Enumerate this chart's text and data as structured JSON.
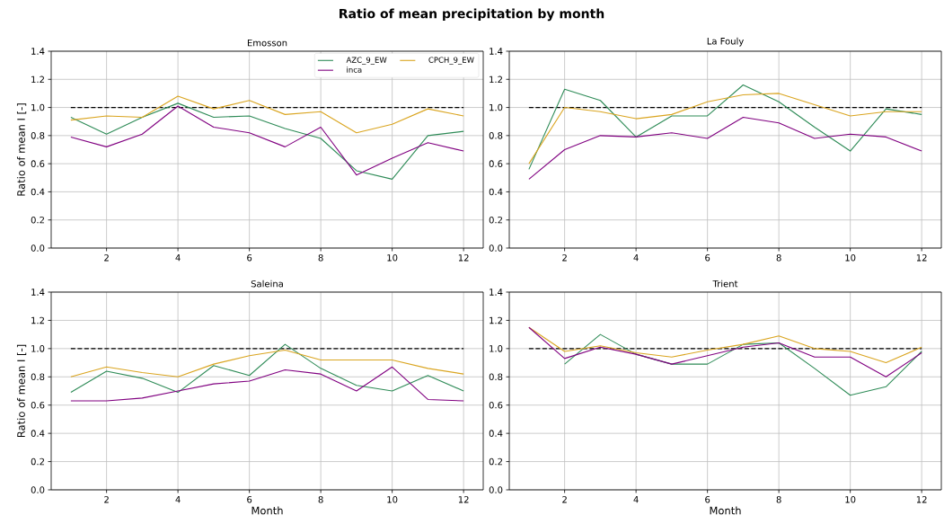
{
  "chart_data": [
    {
      "type": "line",
      "title": "Emosson",
      "ylabel": "Ratio of mean I [-]",
      "annotations": [
        "Ratio of mean precipitation by month"
      ],
      "x": [
        1,
        2,
        3,
        4,
        5,
        6,
        7,
        8,
        9,
        10,
        11,
        12
      ],
      "xlim": [
        0.45,
        12.55
      ],
      "ylim": [
        0,
        1.4
      ],
      "xticks": [
        2,
        4,
        6,
        8,
        10,
        12
      ],
      "yticks": [
        {
          "value": 0,
          "label": "0.0"
        },
        {
          "value": 0.2,
          "label": "0.2"
        },
        {
          "value": 0.4,
          "label": "0.4"
        },
        {
          "value": 0.6,
          "label": "0.6"
        },
        {
          "value": 0.8,
          "label": "0.8"
        },
        {
          "value": 1.0,
          "label": "1.0"
        },
        {
          "value": 1.2,
          "label": "1.2"
        },
        {
          "value": 1.4,
          "label": "1.4"
        }
      ],
      "grid": true,
      "legend": "top right",
      "ref_lines": [
        {
          "axis": "y",
          "value": 1.0,
          "color": "#000000",
          "line_style": "dashed"
        }
      ],
      "series": [
        {
          "name": "AZC_9_EW",
          "color": "#2e8b57",
          "values": [
            0.93,
            0.81,
            0.93,
            1.03,
            0.93,
            0.94,
            0.85,
            0.78,
            0.55,
            0.49,
            0.8,
            0.83
          ]
        },
        {
          "name": "CPCH_9_EW",
          "color": "#daa520",
          "values": [
            0.91,
            0.94,
            0.93,
            1.08,
            0.99,
            1.05,
            0.95,
            0.97,
            0.82,
            0.88,
            0.99,
            0.94
          ]
        },
        {
          "name": "inca",
          "color": "#800080",
          "values": [
            0.79,
            0.72,
            0.81,
            1.01,
            0.86,
            0.82,
            0.72,
            0.86,
            0.52,
            0.64,
            0.75,
            0.69
          ]
        }
      ]
    },
    {
      "type": "line",
      "title": "La Fouly",
      "x": [
        1,
        2,
        3,
        4,
        5,
        6,
        7,
        8,
        9,
        10,
        11,
        12
      ],
      "xlim": [
        0.45,
        12.55
      ],
      "ylim": [
        0,
        1.4
      ],
      "xticks": [
        2,
        4,
        6,
        8,
        10,
        12
      ],
      "yticks": [
        {
          "value": 0,
          "label": "0.0"
        },
        {
          "value": 0.2,
          "label": "0.2"
        },
        {
          "value": 0.4,
          "label": "0.4"
        },
        {
          "value": 0.6,
          "label": "0.6"
        },
        {
          "value": 0.8,
          "label": "0.8"
        },
        {
          "value": 1.0,
          "label": "1.0"
        },
        {
          "value": 1.2,
          "label": "1.2"
        },
        {
          "value": 1.4,
          "label": "1.4"
        }
      ],
      "grid": true,
      "ref_lines": [
        {
          "axis": "y",
          "value": 1.0,
          "color": "#000000",
          "line_style": "dashed"
        }
      ],
      "series": [
        {
          "color": "#2e8b57",
          "values": [
            0.56,
            1.13,
            1.05,
            0.79,
            0.94,
            0.94,
            1.16,
            1.04,
            0.86,
            0.69,
            0.99,
            0.95
          ]
        },
        {
          "color": "#daa520",
          "values": [
            0.6,
            1.0,
            0.97,
            0.92,
            0.95,
            1.04,
            1.09,
            1.1,
            1.02,
            0.94,
            0.97,
            0.97
          ]
        },
        {
          "color": "#800080",
          "values": [
            0.49,
            0.7,
            0.8,
            0.79,
            0.82,
            0.78,
            0.93,
            0.89,
            0.78,
            0.81,
            0.79,
            0.69
          ]
        }
      ]
    },
    {
      "type": "line",
      "title": "Saleina",
      "xlabel": "Month",
      "ylabel": "Ratio of mean I [-]",
      "x": [
        1,
        2,
        3,
        4,
        5,
        6,
        7,
        8,
        9,
        10,
        11,
        12
      ],
      "xlim": [
        0.45,
        12.55
      ],
      "ylim": [
        0,
        1.4
      ],
      "xticks": [
        2,
        4,
        6,
        8,
        10,
        12
      ],
      "yticks": [
        {
          "value": 0,
          "label": "0.0"
        },
        {
          "value": 0.2,
          "label": "0.2"
        },
        {
          "value": 0.4,
          "label": "0.4"
        },
        {
          "value": 0.6,
          "label": "0.6"
        },
        {
          "value": 0.8,
          "label": "0.8"
        },
        {
          "value": 1.0,
          "label": "1.0"
        },
        {
          "value": 1.2,
          "label": "1.2"
        },
        {
          "value": 1.4,
          "label": "1.4"
        }
      ],
      "grid": true,
      "ref_lines": [
        {
          "axis": "y",
          "value": 1.0,
          "color": "#000000",
          "line_style": "dashed"
        }
      ],
      "series": [
        {
          "color": "#2e8b57",
          "values": [
            0.69,
            0.84,
            0.79,
            0.69,
            0.88,
            0.81,
            1.03,
            0.86,
            0.74,
            0.7,
            0.81,
            0.7
          ]
        },
        {
          "color": "#daa520",
          "values": [
            0.8,
            0.87,
            0.83,
            0.8,
            0.89,
            0.95,
            0.99,
            0.92,
            0.92,
            0.92,
            0.86,
            0.82
          ]
        },
        {
          "color": "#800080",
          "values": [
            0.63,
            0.63,
            0.65,
            0.7,
            0.75,
            0.77,
            0.85,
            0.82,
            0.7,
            0.87,
            0.64,
            0.63
          ]
        }
      ]
    },
    {
      "type": "line",
      "title": "Trient",
      "xlabel": "Month",
      "x": [
        1,
        2,
        3,
        4,
        5,
        6,
        7,
        8,
        9,
        10,
        11,
        12
      ],
      "xlim": [
        0.45,
        12.55
      ],
      "ylim": [
        0,
        1.4
      ],
      "xticks": [
        2,
        4,
        6,
        8,
        10,
        12
      ],
      "yticks": [
        {
          "value": 0,
          "label": "0.0"
        },
        {
          "value": 0.2,
          "label": "0.2"
        },
        {
          "value": 0.4,
          "label": "0.4"
        },
        {
          "value": 0.6,
          "label": "0.6"
        },
        {
          "value": 0.8,
          "label": "0.8"
        },
        {
          "value": 1.0,
          "label": "1.0"
        },
        {
          "value": 1.2,
          "label": "1.2"
        },
        {
          "value": 1.4,
          "label": "1.4"
        }
      ],
      "grid": true,
      "ref_lines": [
        {
          "axis": "y",
          "value": 1.0,
          "color": "#000000",
          "line_style": "dashed"
        }
      ],
      "series": [
        {
          "color": "#2e8b57",
          "values": [
            null,
            0.89,
            1.1,
            0.96,
            0.89,
            0.89,
            1.03,
            1.04,
            0.86,
            0.67,
            0.73,
            0.98
          ]
        },
        {
          "color": "#daa520",
          "values": [
            1.15,
            0.98,
            1.02,
            0.97,
            0.94,
            0.99,
            1.03,
            1.09,
            1.0,
            0.98,
            0.9,
            1.01
          ]
        },
        {
          "color": "#800080",
          "values": [
            1.15,
            0.93,
            1.01,
            0.96,
            0.89,
            0.95,
            1.01,
            1.04,
            0.94,
            0.94,
            0.8,
            0.97
          ]
        }
      ]
    }
  ]
}
